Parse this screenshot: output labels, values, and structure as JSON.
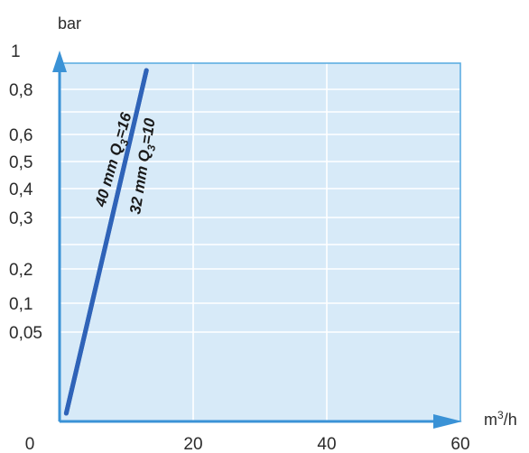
{
  "chart_data": {
    "type": "line",
    "title": "",
    "ylabel_unit": "bar",
    "xlabel_unit_base": "m",
    "xlabel_unit_sup": "3",
    "xlabel_unit_tail": "/h",
    "x_ticks": [
      "0",
      "20",
      "40",
      "60"
    ],
    "y_ticks": [
      {
        "label": "1",
        "value": 1
      },
      {
        "label": "0,8",
        "value": 0.8
      },
      {
        "label": "0,6",
        "value": 0.6
      },
      {
        "label": "0,5",
        "value": 0.5
      },
      {
        "label": "0,4",
        "value": 0.4
      },
      {
        "label": "0,3",
        "value": 0.3
      },
      {
        "label": "0,2",
        "value": 0.2
      },
      {
        "label": "0,1",
        "value": 0.1
      },
      {
        "label": "0,05",
        "value": 0.05
      }
    ],
    "xlim": [
      0,
      60
    ],
    "ylim": [
      0,
      1
    ],
    "grid": true,
    "series": [
      {
        "label_main": "40 mm Q",
        "label_sub": "3",
        "label_tail": "=16",
        "points": [
          {
            "x": 1,
            "y": 0.01
          },
          {
            "x": 13,
            "y": 0.9
          }
        ]
      },
      {
        "label_main": "32 mm Q",
        "label_sub": "3",
        "label_tail": "=10",
        "points": [
          {
            "x": 1,
            "y": 0.01
          },
          {
            "x": 13,
            "y": 0.9
          }
        ]
      }
    ],
    "colors": {
      "plot_bg": "#d7eaf8",
      "grid": "#ffffff",
      "border": "#55a9e0",
      "axis_arrow": "#3a92d6",
      "line": "#2f63b8"
    }
  }
}
